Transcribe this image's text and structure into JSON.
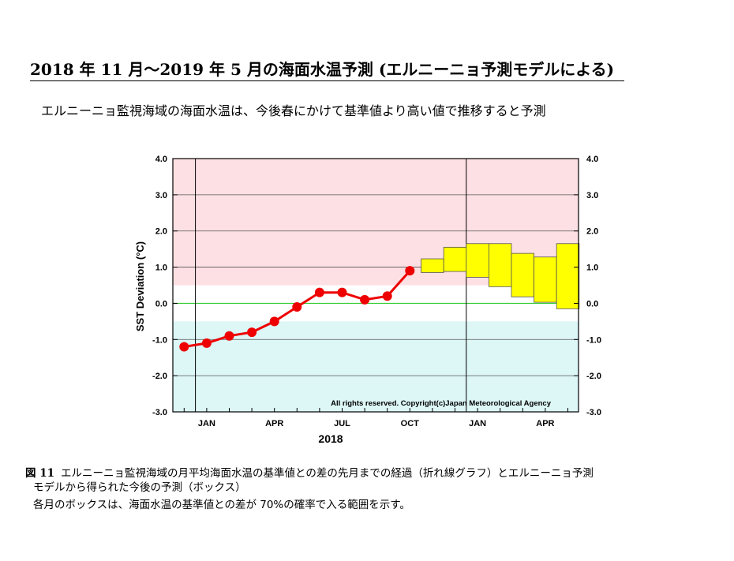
{
  "header": {
    "title": "2018 年 11 月～2019 年 5 月の海面水温予測 (エルニーニョ予測モデルによる)",
    "subtitle": "エルニーニョ監視海域の海面水温は、今後春にかけて基準値より高い値で推移すると予測"
  },
  "caption": {
    "label": "図 11",
    "text_line1": "エルニーニョ監視海域の月平均海面水温の基準値との差の先月までの経過（折れ線グラフ）とエルニーニョ予測",
    "text_line2": "モデルから得られた今後の予測（ボックス）",
    "note": "各月のボックスは、海面水温の基準値との差が 70%の確率で入る範囲を示す。"
  },
  "colors": {
    "warm_band": "#fde0e3",
    "cold_band": "#ddf6f6",
    "observed": "#ee0000",
    "forecast_box": "#ffff00",
    "zero_line": "#33cc33"
  },
  "chart_data": {
    "type": "line",
    "ylabel": "SST Deviation (°C)",
    "xlabel": "2018",
    "ylim": [
      -3.0,
      4.0
    ],
    "yticks": [
      "4.0",
      "3.0",
      "2.0",
      "1.0",
      "0.0",
      "-1.0",
      "-2.0",
      "-3.0"
    ],
    "xtick_labels": [
      "JAN",
      "APR",
      "JUL",
      "OCT",
      "JAN",
      "APR"
    ],
    "copyright": "All rights reserved. Copyright(c)Japan Meteorological Agency",
    "observed": {
      "months": [
        "Dec 2017",
        "Jan",
        "Feb",
        "Mar",
        "Apr",
        "May",
        "Jun",
        "Jul",
        "Aug",
        "Sep",
        "Oct"
      ],
      "values": [
        -1.2,
        -1.1,
        -0.9,
        -0.8,
        -0.5,
        -0.1,
        0.3,
        0.3,
        0.1,
        0.2,
        0.9
      ]
    },
    "forecast": {
      "months": [
        "Nov",
        "Dec",
        "Jan",
        "Feb",
        "Mar",
        "Apr",
        "May"
      ],
      "low": [
        0.85,
        0.88,
        0.72,
        0.46,
        0.18,
        0.03,
        -0.15
      ],
      "high": [
        1.23,
        1.55,
        1.65,
        1.65,
        1.38,
        1.28,
        1.65
      ]
    },
    "bands": {
      "warm_min": 0.5,
      "cold_max": -0.5
    }
  }
}
